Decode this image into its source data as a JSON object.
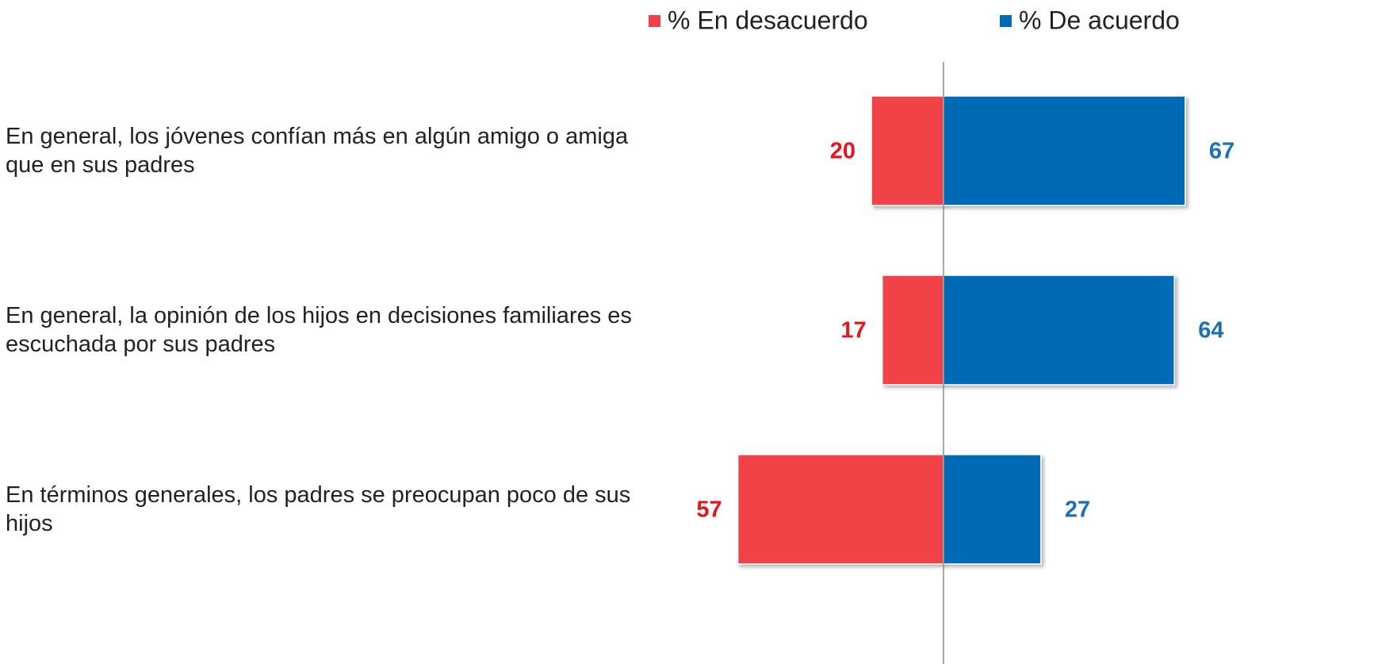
{
  "chart_data": {
    "type": "diverging_bar",
    "categories": [
      "En general, los jóvenes confían más en algún amigo o amiga que en sus padres",
      "En general, la opinión de los hijos en decisiones familiares es escuchada por sus padres",
      "En términos generales, los padres se preocupan poco de sus hijos"
    ],
    "series": [
      {
        "name": "% En desacuerdo",
        "color": "#f04246",
        "label_color": "#e8141b",
        "values": [
          20,
          17,
          57
        ]
      },
      {
        "name": "% De acuerdo",
        "color": "#006bb6",
        "label_color": "#1a6fb8",
        "values": [
          67,
          64,
          27
        ]
      }
    ],
    "xlim": [
      -60,
      70
    ],
    "legend": "top"
  }
}
